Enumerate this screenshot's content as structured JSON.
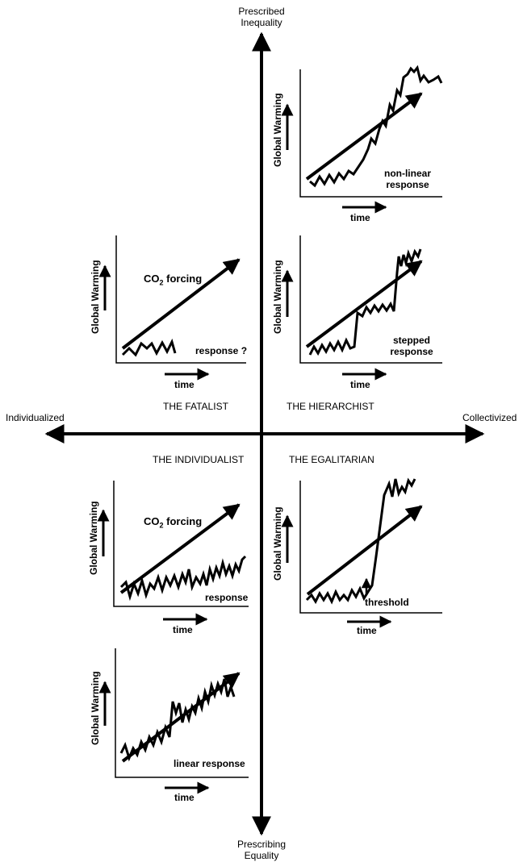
{
  "axes": {
    "top": [
      "Prescribed",
      "Inequality"
    ],
    "bottom": [
      "Prescribing",
      "Equality"
    ],
    "left": "Individualized",
    "right": "Collectivized"
  },
  "quadrants": {
    "fatalist": "THE FATALIST",
    "hierarchist": "THE HIERARCHIST",
    "individualist": "THE INDIVIDUALIST",
    "egalitarian": "THE EGALITARIAN"
  },
  "common": {
    "ylabel": "Global Warming",
    "xlabel": "time"
  },
  "panels": {
    "nonlinear": {
      "label": [
        "non-linear",
        "response"
      ]
    },
    "fatalist": {
      "forcing_prefix": "CO",
      "forcing_sub": "2",
      "forcing_suffix": " forcing",
      "label": "response ?"
    },
    "stepped": {
      "label": [
        "stepped",
        "response"
      ]
    },
    "individualist": {
      "forcing_prefix": "CO",
      "forcing_sub": "2",
      "forcing_suffix": " forcing",
      "label": "response"
    },
    "threshold": {
      "label": "threshold"
    },
    "linear": {
      "label": "linear response"
    }
  }
}
